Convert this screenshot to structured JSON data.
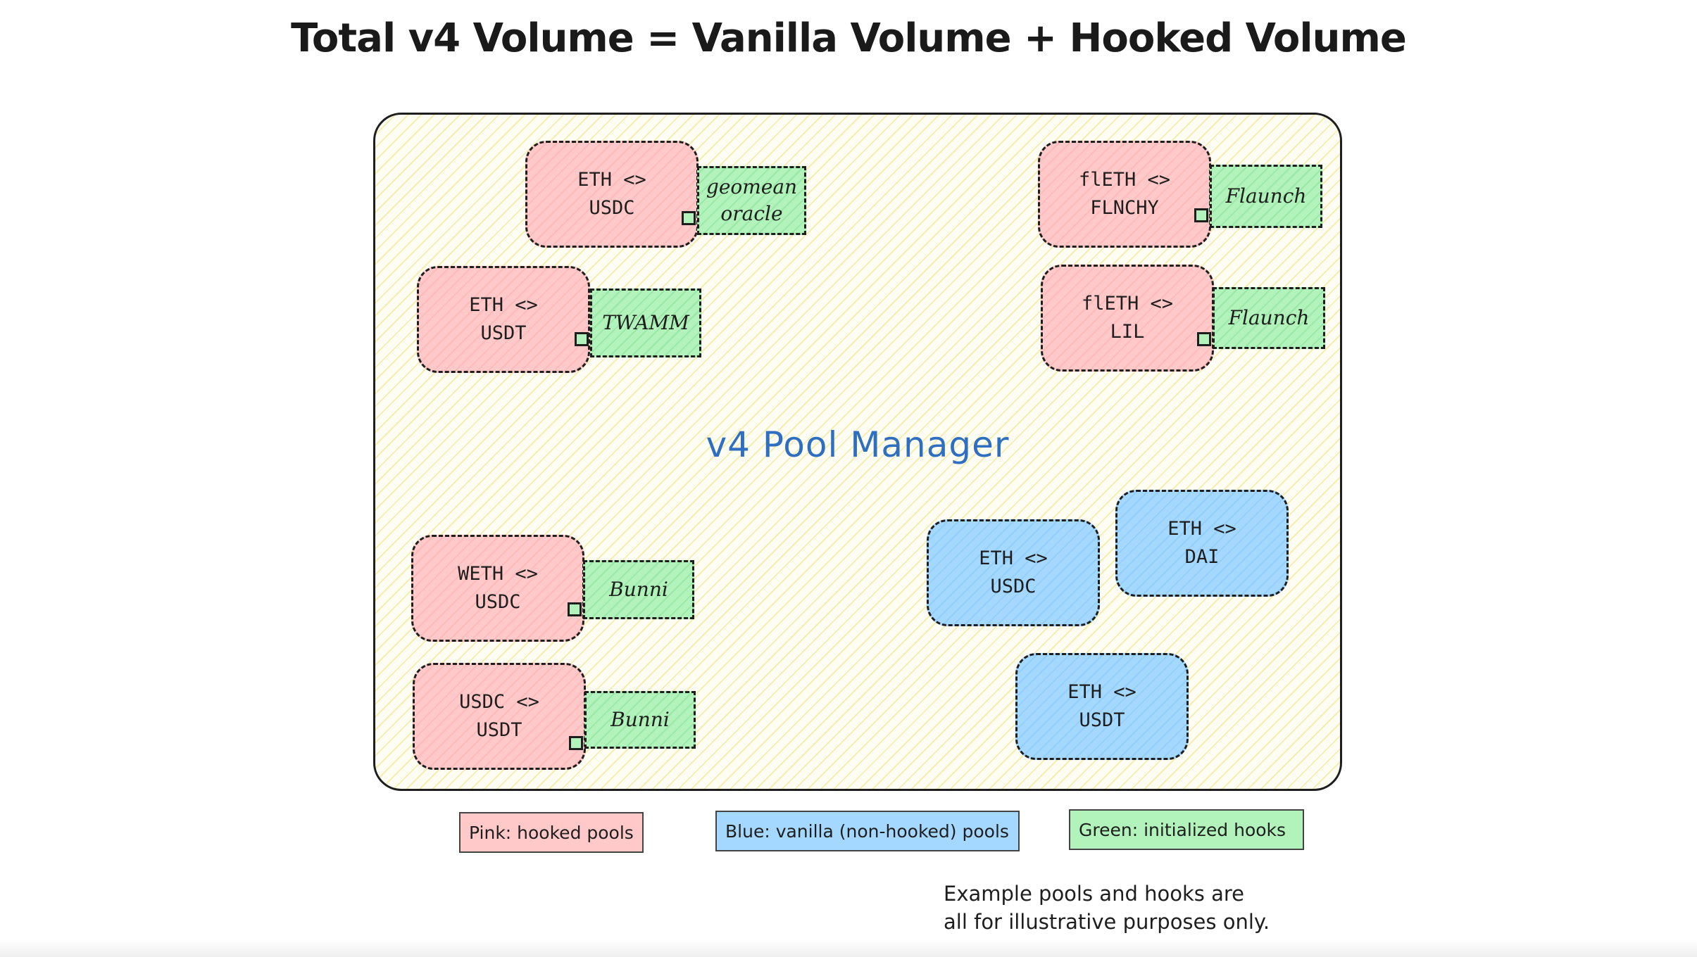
{
  "title": "Total v4 Volume = Vanilla Volume + Hooked Volume",
  "manager": {
    "label": "v4 Pool Manager"
  },
  "pools": [
    {
      "id": "pool-eth-usdc-geomean",
      "kind": "hooked",
      "label": "ETH <>\nUSDC",
      "hook": "geomean\noracle"
    },
    {
      "id": "pool-eth-usdt-twamm",
      "kind": "hooked",
      "label": "ETH <>\nUSDT",
      "hook": "TWAMM"
    },
    {
      "id": "pool-fleth-flnchy",
      "kind": "hooked",
      "label": "flETH <>\nFLNCHY",
      "hook": "Flaunch"
    },
    {
      "id": "pool-fleth-lil",
      "kind": "hooked",
      "label": "flETH <>\nLIL",
      "hook": "Flaunch"
    },
    {
      "id": "pool-weth-usdc-bunni",
      "kind": "hooked",
      "label": "WETH <>\nUSDC",
      "hook": "Bunni"
    },
    {
      "id": "pool-usdc-usdt-bunni",
      "kind": "hooked",
      "label": "USDC <>\nUSDT",
      "hook": "Bunni"
    },
    {
      "id": "pool-eth-usdc-vanilla",
      "kind": "vanilla",
      "label": "ETH <>\nUSDC"
    },
    {
      "id": "pool-eth-dai-vanilla",
      "kind": "vanilla",
      "label": "ETH <>\nDAI"
    },
    {
      "id": "pool-eth-usdt-vanilla",
      "kind": "vanilla",
      "label": "ETH <>\nUSDT"
    }
  ],
  "legend": {
    "pink": "Pink: hooked pools",
    "blue": "Blue: vanilla (non-hooked) pools",
    "green": "Green: initialized hooks"
  },
  "note": "Example pools and hooks are\nall for illustrative purposes only.",
  "colors": {
    "hooked_pool": "#ffc9c9",
    "vanilla_pool": "#a5d8ff",
    "hook": "#b2f2bb",
    "manager_fill": "#fdfdf4",
    "manager_label": "#2f6fc1"
  }
}
